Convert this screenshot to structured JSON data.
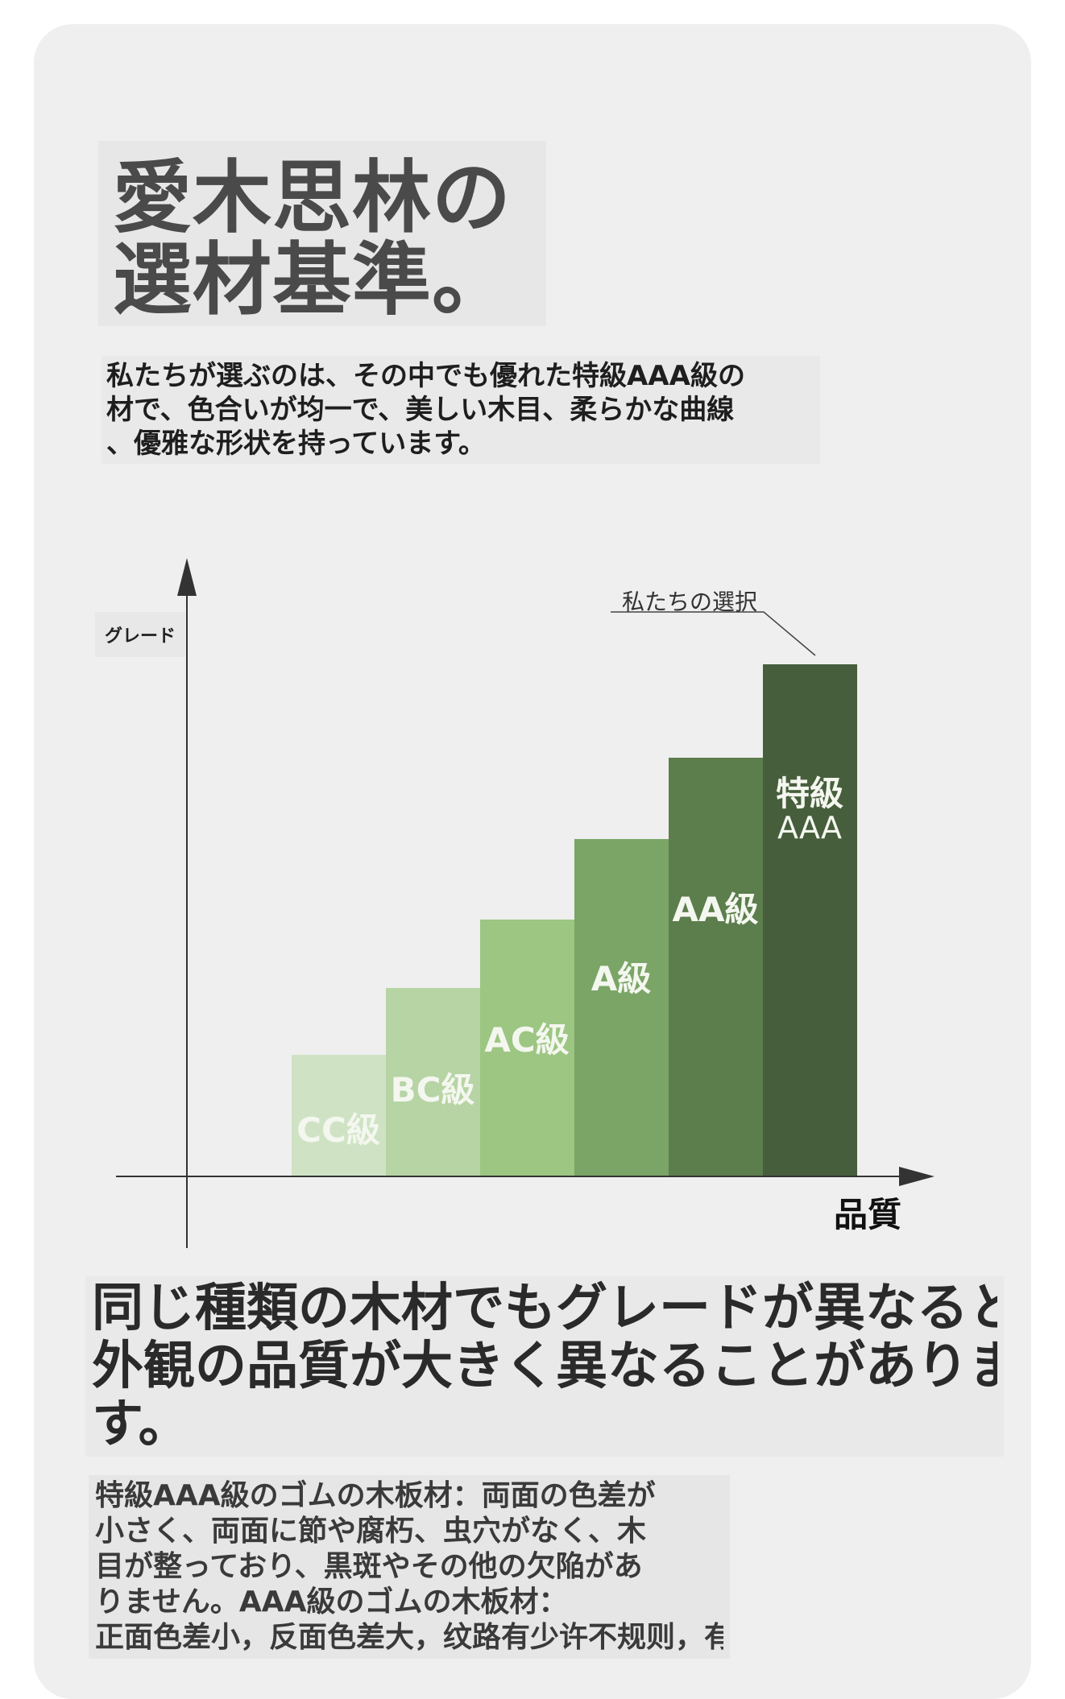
{
  "title": {
    "line1": "愛木思林の",
    "line2": "選材基準。"
  },
  "intro": {
    "line1": "私たちが選ぶのは、その中でも優れた特級AAA級の",
    "line2": "材で、色合いが均一で、美しい木目、柔らかな曲線",
    "line3": "、優雅な形状を持っています。"
  },
  "chart": {
    "y_axis_label": "グレード",
    "x_axis_label": "品質",
    "callout": "私たちの選択",
    "bar_labels": [
      "CC級",
      "BC級",
      "AC級",
      "A級",
      "AA級"
    ],
    "top_bar_label_line1": "特級",
    "top_bar_label_line2": "AAA",
    "colors": [
      "#cfe3c4",
      "#b6d4a4",
      "#9cc682",
      "#7aa566",
      "#5c7d4c",
      "#475e3c"
    ]
  },
  "chart_data": {
    "type": "bar",
    "categories": [
      "CC級",
      "BC級",
      "AC級",
      "A級",
      "AA級",
      "特級AAA"
    ],
    "values": [
      1,
      2,
      3,
      4,
      5,
      6
    ],
    "title": "",
    "xlabel": "品質",
    "ylabel": "グレード"
  },
  "headline": {
    "line1": "同じ種類の木材でもグレードが異なると",
    "line2": "外観の品質が大きく異なることがありま",
    "line3": "す。"
  },
  "detail": {
    "line1": "特級AAA級のゴムの木板材：両面の色差が",
    "line2": "小さく、両面に節や腐朽、虫穴がなく、木",
    "line3": "目が整っており、黒斑やその他の欠陥があ",
    "line4": "りません。AAA級のゴムの木板材：",
    "line5": "正面色差小，反面色差大，纹路有少许不规则，有黑斑"
  }
}
